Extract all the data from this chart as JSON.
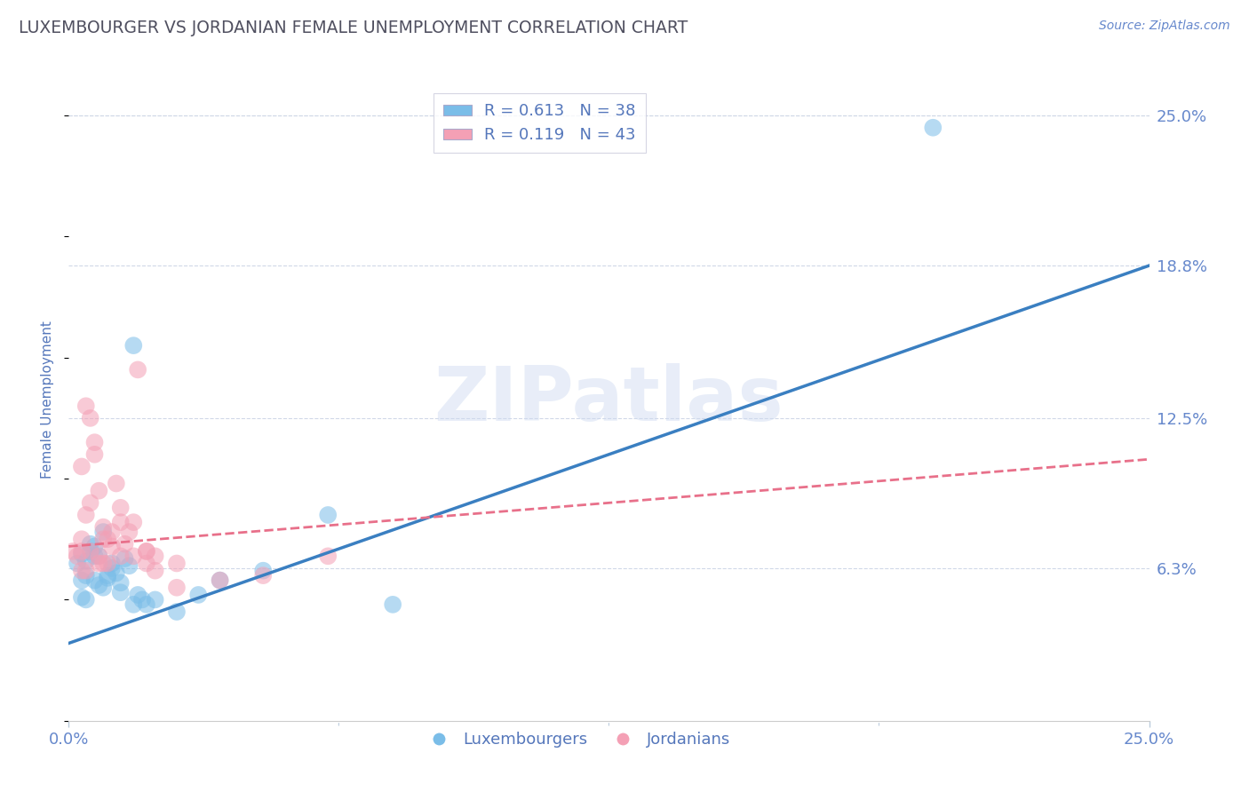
{
  "title": "LUXEMBOURGER VS JORDANIAN FEMALE UNEMPLOYMENT CORRELATION CHART",
  "source": "Source: ZipAtlas.com",
  "ylabel": "Female Unemployment",
  "xlim": [
    0.0,
    25.0
  ],
  "ylim": [
    0.0,
    26.5
  ],
  "yticks": [
    6.3,
    12.5,
    18.8,
    25.0
  ],
  "ytick_labels": [
    "6.3%",
    "12.5%",
    "18.8%",
    "25.0%"
  ],
  "xtick_labels": [
    "0.0%",
    "25.0%"
  ],
  "xtick_vals": [
    0.0,
    25.0
  ],
  "xtick_minor": [
    6.25,
    12.5,
    18.75
  ],
  "blue_color": "#7abde8",
  "pink_color": "#f4a0b5",
  "blue_line_color": "#3a7fc1",
  "pink_line_color": "#e8708a",
  "legend_blue_R": "0.613",
  "legend_blue_N": "38",
  "legend_pink_R": "0.119",
  "legend_pink_N": "43",
  "legend_label_blue": "Luxembourgers",
  "legend_label_pink": "Jordanians",
  "watermark": "ZIPatlas",
  "blue_scatter_x": [
    0.2,
    0.3,
    0.4,
    0.5,
    0.6,
    0.7,
    0.8,
    0.9,
    1.0,
    1.1,
    1.2,
    1.3,
    1.4,
    1.5,
    1.6,
    1.7,
    1.8,
    0.3,
    0.5,
    0.4,
    0.6,
    0.8,
    0.7,
    0.9,
    1.0,
    1.2,
    1.5,
    2.0,
    2.5,
    3.0,
    3.5,
    4.5,
    6.0,
    7.5,
    0.3,
    0.4,
    20.0,
    0.6
  ],
  "blue_scatter_y": [
    6.5,
    5.8,
    6.0,
    7.0,
    7.2,
    6.8,
    5.5,
    5.9,
    6.3,
    6.1,
    5.7,
    6.7,
    6.4,
    15.5,
    5.2,
    5.0,
    4.8,
    6.9,
    7.3,
    6.6,
    6.8,
    7.8,
    5.6,
    6.0,
    6.5,
    5.3,
    4.8,
    5.0,
    4.5,
    5.2,
    5.8,
    6.2,
    8.5,
    4.8,
    5.1,
    5.0,
    24.5,
    5.8
  ],
  "pink_scatter_x": [
    0.1,
    0.2,
    0.3,
    0.4,
    0.5,
    0.6,
    0.7,
    0.8,
    0.9,
    1.0,
    1.1,
    1.2,
    1.3,
    1.4,
    1.5,
    1.6,
    1.8,
    2.0,
    2.5,
    0.3,
    0.5,
    0.4,
    0.6,
    0.8,
    0.7,
    1.0,
    1.2,
    1.5,
    1.8,
    0.3,
    0.5,
    0.7,
    0.9,
    1.8,
    2.5,
    4.5,
    6.0,
    0.4,
    0.8,
    1.2,
    2.0,
    3.5,
    0.3
  ],
  "pink_scatter_y": [
    7.0,
    6.8,
    7.5,
    8.5,
    12.5,
    11.0,
    9.5,
    8.0,
    6.5,
    7.2,
    9.8,
    8.8,
    7.3,
    7.8,
    8.2,
    14.5,
    7.0,
    6.8,
    6.5,
    10.5,
    9.0,
    13.0,
    11.5,
    7.5,
    6.5,
    7.8,
    8.2,
    6.8,
    6.5,
    6.2,
    7.0,
    6.8,
    7.5,
    7.0,
    5.5,
    6.0,
    6.8,
    6.2,
    6.5,
    6.8,
    6.2,
    5.8,
    7.0
  ],
  "blue_line_x": [
    0.0,
    25.0
  ],
  "blue_line_y_start": 3.2,
  "blue_line_y_end": 18.8,
  "pink_line_x": [
    0.0,
    25.0
  ],
  "pink_line_y_start": 7.2,
  "pink_line_y_end": 10.8,
  "grid_color": "#d0d8e8",
  "background_color": "#ffffff",
  "title_color": "#505060",
  "axis_label_color": "#5577bb",
  "tick_color": "#6688cc"
}
